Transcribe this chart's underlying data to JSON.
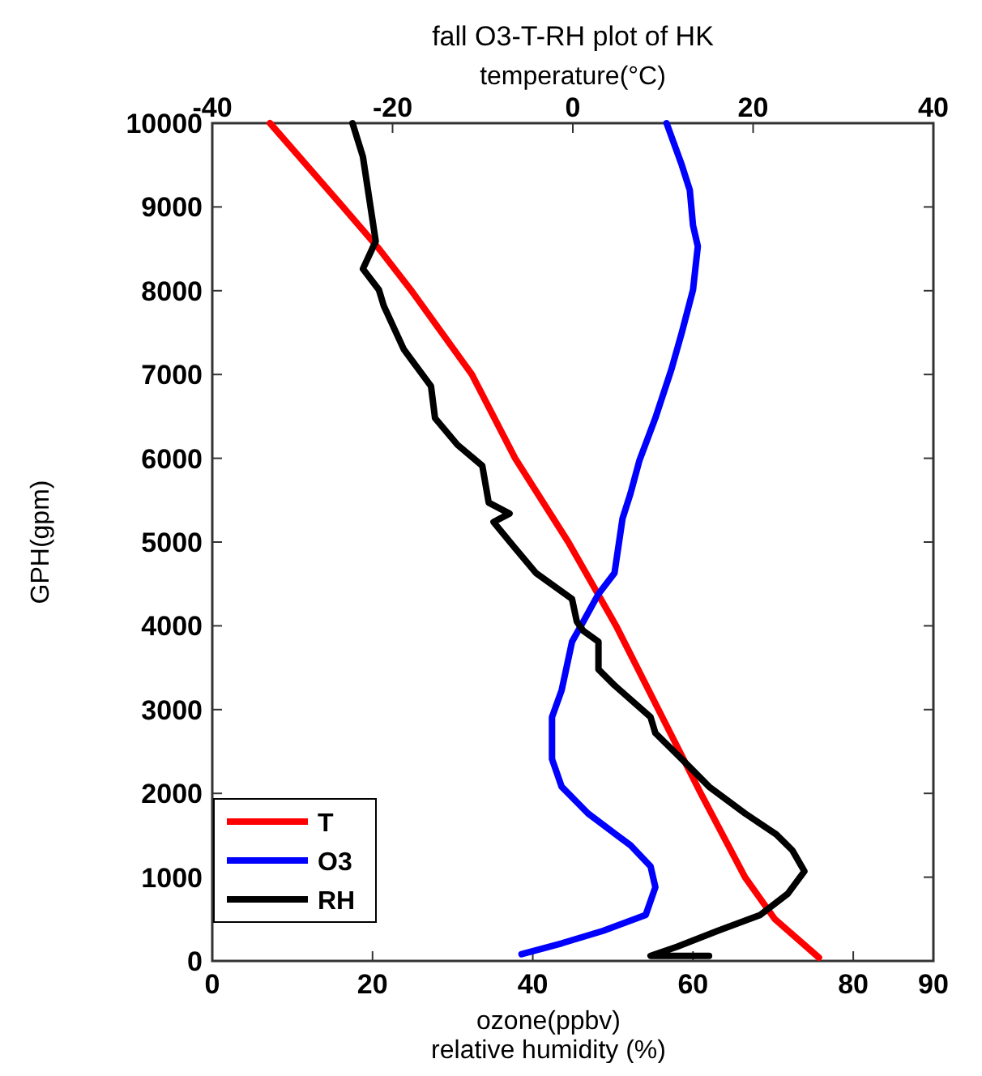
{
  "chart_data": {
    "type": "line",
    "title": "fall O3-T-RH plot of HK",
    "xlabel": "ozone(ppbv)\nrelative humidity (%)",
    "x2label": "temperature(°C)",
    "ylabel": "GPH(gpm)",
    "xlim": [
      0,
      90
    ],
    "xticks": [
      0,
      20,
      40,
      60,
      80,
      90
    ],
    "x2lim": [
      -40,
      40
    ],
    "x2ticks": [
      -40,
      -20,
      0,
      20,
      40
    ],
    "ylim": [
      0,
      10000
    ],
    "yticks": [
      0,
      1000,
      2000,
      3000,
      4000,
      5000,
      6000,
      7000,
      8000,
      9000,
      10000
    ],
    "grid": false,
    "legend": "bottom left",
    "line_style": "solid",
    "marker": "none",
    "series": [
      {
        "name": "T",
        "color": "#ff0000",
        "axis": "x2",
        "x": [
          -33.6,
          -25.5,
          -21.5,
          -17.9,
          -11.2,
          -6.4,
          -0.5,
          4.8,
          9.5,
          14.2,
          19.1,
          22.4,
          27.3
        ],
        "values": [
          10000,
          9000,
          8500,
          8000,
          7000,
          6000,
          5000,
          4000,
          3000,
          2000,
          1000,
          500,
          40
        ]
      },
      {
        "name": "O3",
        "color": "#0000ff",
        "x": [
          56.7,
          58.6,
          59.6,
          60,
          60.6,
          60,
          58.6,
          57.3,
          55.3,
          53.3,
          52.2,
          51.2,
          50.2,
          48.2,
          46.3,
          44.9,
          43.6,
          42.4,
          42.4,
          43.6,
          46.9,
          52.2,
          54.7,
          55.3,
          54.1,
          48.8,
          43.6,
          38.6
        ],
        "values": [
          10000,
          9500,
          9200,
          8780,
          8530,
          8010,
          7500,
          7060,
          6480,
          5970,
          5580,
          5280,
          4630,
          4380,
          4050,
          3810,
          3230,
          2910,
          2410,
          2080,
          1760,
          1380,
          1130,
          880,
          550,
          360,
          210,
          80
        ]
      },
      {
        "name": "RH",
        "color": "#000000",
        "x": [
          17.5,
          18.8,
          19.4,
          20.4,
          18.8,
          20.8,
          21.4,
          23.9,
          27.3,
          27.8,
          30.6,
          33.7,
          34.5,
          37.1,
          35.1,
          37.6,
          40.4,
          44.9,
          45.5,
          46.3,
          48.2,
          48.2,
          50.2,
          54.7,
          55.3,
          58.6,
          62,
          66.5,
          70.4,
          72.4,
          73.9,
          71.8,
          68.4,
          63.1,
          58,
          54.7,
          62
        ],
        "values": [
          10000,
          9600,
          9220,
          8590,
          8260,
          8010,
          7820,
          7300,
          6860,
          6480,
          6160,
          5910,
          5470,
          5340,
          5240,
          4950,
          4630,
          4320,
          4050,
          3940,
          3810,
          3480,
          3290,
          2910,
          2720,
          2410,
          2080,
          1760,
          1510,
          1320,
          1070,
          800,
          550,
          360,
          170,
          60,
          60
        ]
      }
    ]
  }
}
